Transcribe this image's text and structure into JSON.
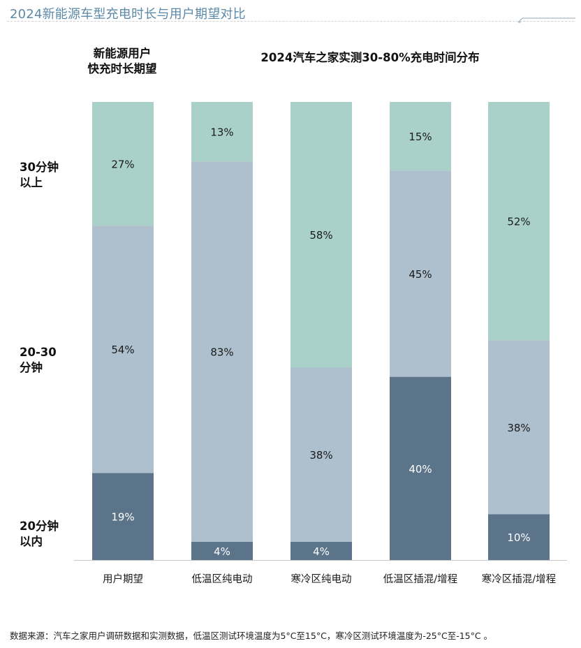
{
  "page_title": "2024新能源车型充电时长与用户期望对比",
  "left_heading": [
    "新能源用户",
    "快充时长期望"
  ],
  "right_heading": "2024汽车之家实测30-80%充电时间分布",
  "y_labels": [
    {
      "line1": "30分钟",
      "line2": "以上"
    },
    {
      "line1": "20-30",
      "line2": "分钟"
    },
    {
      "line1": "20分钟",
      "line2": "以内"
    }
  ],
  "source_note": "数据来源：汽车之家用户调研数据和实测数据，低温区测试环境温度为5°C至15°C，寒冷区测试环境温度为-25°C至-15°C 。",
  "colors": {
    "over_30": "#a9d1c9",
    "mid_20_30": "#aebfcd",
    "under_20": "#5b7489",
    "title": "#5b8aa8"
  },
  "chart_data": {
    "type": "bar",
    "stacked": true,
    "percent": true,
    "categories": [
      "用户期望",
      "低温区纯电动",
      "寒冷区纯电动",
      "低温区插混/增程",
      "寒冷区插混/增程"
    ],
    "series": [
      {
        "key": "under_20",
        "values": [
          19,
          4,
          4,
          40,
          10
        ],
        "labels": [
          "19%",
          "4%",
          "4%",
          "40%",
          "10%"
        ]
      },
      {
        "key": "mid_20_30",
        "values": [
          54,
          83,
          38,
          45,
          38
        ],
        "labels": [
          "54%",
          "83%",
          "38%",
          "45%",
          "38%"
        ]
      },
      {
        "key": "over_30",
        "values": [
          27,
          13,
          58,
          15,
          52
        ],
        "labels": [
          "27%",
          "13%",
          "58%",
          "15%",
          "52%"
        ]
      }
    ],
    "ylim": [
      0,
      100
    ]
  }
}
